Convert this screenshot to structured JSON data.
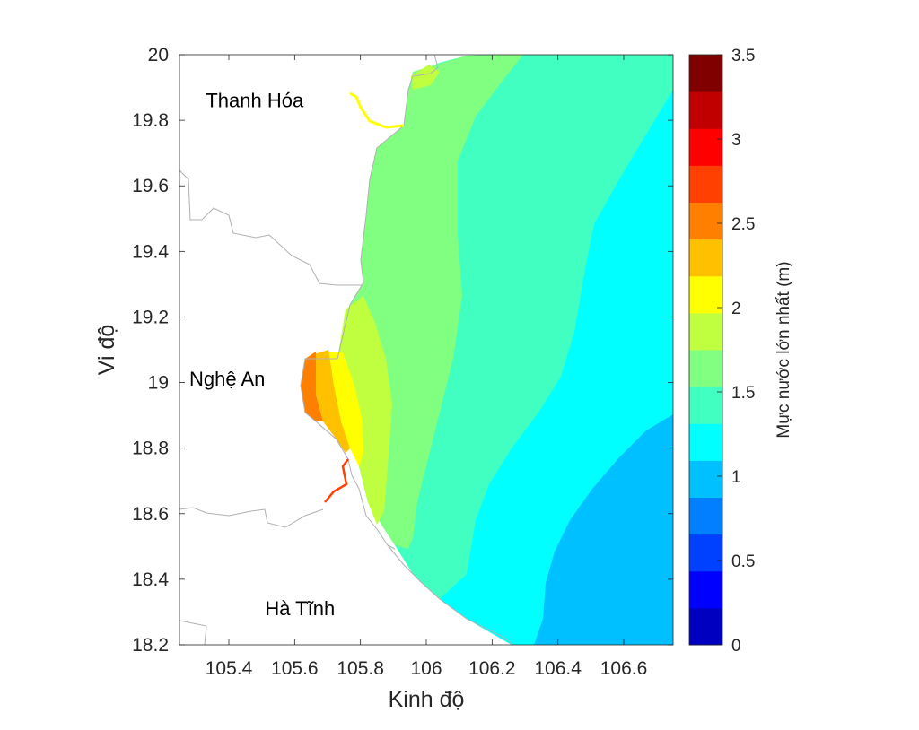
{
  "chart_data": {
    "type": "heatmap",
    "xlabel": "Kinh độ",
    "ylabel": "Vi độ",
    "xlim": [
      105.25,
      106.75
    ],
    "ylim": [
      18.2,
      20.0
    ],
    "x_ticks": [
      "105.4",
      "105.6",
      "105.8",
      "106",
      "106.2",
      "106.4",
      "106.6"
    ],
    "x_tick_values": [
      105.4,
      105.6,
      105.8,
      106.0,
      106.2,
      106.4,
      106.6
    ],
    "y_ticks": [
      "20",
      "19.8",
      "19.6",
      "19.4",
      "19.2",
      "19",
      "18.8",
      "18.6",
      "18.4",
      "18.2"
    ],
    "y_tick_values": [
      20.0,
      19.8,
      19.6,
      19.4,
      19.2,
      19.0,
      18.8,
      18.6,
      18.4,
      18.2
    ],
    "places": [
      {
        "name": "Thanh Hóa",
        "lon": 105.33,
        "lat": 19.84
      },
      {
        "name": "Nghệ An",
        "lon": 105.28,
        "lat": 18.99
      },
      {
        "name": "Hà Tĩnh",
        "lon": 105.51,
        "lat": 18.29
      }
    ],
    "contour_bands": [
      {
        "range": [
          1.0,
          1.25
        ],
        "color": "#00c0ff",
        "region": "southeast offshore"
      },
      {
        "range": [
          1.25,
          1.5
        ],
        "color": "#00ffff",
        "region": "east offshore"
      },
      {
        "range": [
          1.5,
          1.75
        ],
        "color": "#40ffc0",
        "region": "mid offshore"
      },
      {
        "range": [
          1.75,
          2.0
        ],
        "color": "#80ff80",
        "region": "nearshore"
      },
      {
        "range": [
          2.0,
          2.25
        ],
        "color": "#c0ff40",
        "region": "Nghệ An coast"
      },
      {
        "range": [
          2.25,
          2.5
        ],
        "color": "#ffff00",
        "region": "Nghệ An coast"
      },
      {
        "range": [
          2.5,
          2.75
        ],
        "color": "#ffc000",
        "region": "Nghệ An coast"
      },
      {
        "range": [
          2.75,
          3.0
        ],
        "color": "#ff8000",
        "region": "Nghệ An coast"
      },
      {
        "range": [
          3.0,
          3.25
        ],
        "color": "#ff4000",
        "region": "river channel"
      }
    ],
    "colorbar": {
      "label": "Mực nước lớn nhất (m)",
      "range": [
        0,
        3.5
      ],
      "ticks": [
        "0",
        "0.5",
        "1",
        "1.5",
        "2",
        "2.5",
        "3",
        "3.5"
      ],
      "tick_values": [
        0,
        0.5,
        1,
        1.5,
        2,
        2.5,
        3,
        3.5
      ],
      "colors": [
        "#0000c0",
        "#0000ff",
        "#0040ff",
        "#0080ff",
        "#00c0ff",
        "#00ffff",
        "#40ffc0",
        "#80ff80",
        "#c0ff40",
        "#ffff00",
        "#ffc000",
        "#ff8000",
        "#ff4000",
        "#ff0000",
        "#c00000",
        "#800000"
      ]
    },
    "grid": false
  }
}
